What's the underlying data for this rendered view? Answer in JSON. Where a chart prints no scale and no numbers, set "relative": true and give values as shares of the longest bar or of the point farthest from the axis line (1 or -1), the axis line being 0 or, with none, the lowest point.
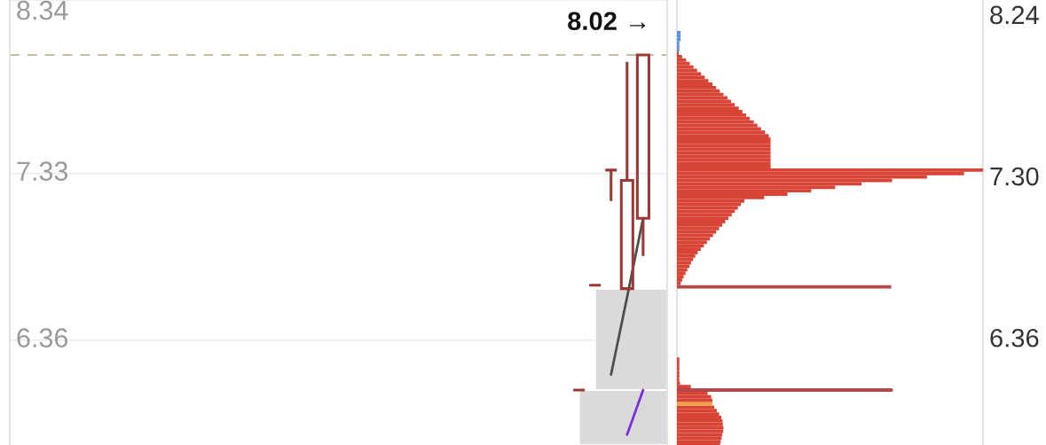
{
  "chart_data": [
    {
      "type": "candlestick",
      "categories": [
        null,
        null,
        null,
        null,
        null,
        null,
        null,
        null,
        null,
        null,
        null,
        null,
        null,
        null,
        null,
        null,
        null,
        null,
        null,
        null,
        null,
        null,
        null,
        null,
        null,
        null,
        null,
        null,
        null,
        null,
        null,
        null,
        null,
        null,
        null,
        null,
        null,
        null,
        null,
        null,
        null
      ],
      "ohlc": [
        null,
        null,
        null,
        null,
        null,
        null,
        null,
        null,
        null,
        null,
        null,
        null,
        null,
        null,
        null,
        null,
        null,
        null,
        null,
        null,
        null,
        null,
        null,
        null,
        null,
        null,
        null,
        null,
        null,
        null,
        null,
        null,
        null,
        null,
        null,
        [
          6.07,
          6.07,
          6.07,
          6.07
        ],
        [
          6.68,
          6.68,
          6.68,
          6.68
        ],
        [
          7.35,
          7.35,
          7.17,
          7.35
        ],
        [
          6.66,
          7.98,
          6.66,
          7.29
        ],
        [
          7.07,
          8.02,
          6.85,
          8.02
        ],
        null
      ],
      "color": "#9b3a35",
      "series": [
        {
          "type": "line",
          "color": "#4d4d4d",
          "values": [
            null,
            null,
            null,
            null,
            null,
            null,
            null,
            null,
            null,
            null,
            null,
            null,
            null,
            null,
            null,
            null,
            null,
            null,
            null,
            null,
            null,
            null,
            null,
            null,
            null,
            null,
            null,
            null,
            null,
            null,
            null,
            null,
            null,
            null,
            null,
            null,
            null,
            6.16,
            6.61,
            7.07,
            null
          ]
        },
        {
          "type": "line",
          "color": "#7b2be0",
          "values": [
            null,
            null,
            null,
            null,
            null,
            null,
            null,
            null,
            null,
            null,
            null,
            null,
            null,
            null,
            null,
            null,
            null,
            null,
            null,
            null,
            null,
            null,
            null,
            null,
            null,
            null,
            null,
            null,
            null,
            null,
            null,
            null,
            null,
            null,
            null,
            null,
            null,
            null,
            5.81,
            6.07,
            null
          ]
        }
      ],
      "ylim": [
        5.75,
        8.34
      ],
      "yticks": [
        8.34,
        7.33,
        6.36
      ],
      "grid": "y",
      "tick_labels": "y",
      "ref_lines": [
        {
          "axis": "y",
          "value": 8.02,
          "color": "#c4bfa3",
          "line_style": "dashed"
        }
      ],
      "bands": [
        {
          "axis": "y",
          "from": 6.07,
          "to": 6.66,
          "color": "#dadada"
        },
        {
          "axis": "y",
          "from": 5.75,
          "to": 6.07,
          "color": "#dadada"
        }
      ],
      "annotations": [
        {
          "text": "8.02 →",
          "y": 8.02
        }
      ]
    },
    {
      "type": "bar",
      "orientation": "horizontal",
      "relative": true,
      "x": [
        5.75,
        5.77,
        5.79,
        5.81,
        5.83,
        5.85,
        5.87,
        5.89,
        5.91,
        5.93,
        5.95,
        5.97,
        5.99,
        6.01,
        6.03,
        6.05,
        6.07,
        6.09,
        6.11,
        6.13,
        6.15,
        6.17,
        6.19,
        6.21,
        6.23,
        6.25,
        6.27,
        6.29,
        6.31,
        6.33,
        6.35,
        6.37,
        6.39,
        6.41,
        6.43,
        6.45,
        6.47,
        6.49,
        6.51,
        6.53,
        6.55,
        6.57,
        6.59,
        6.61,
        6.63,
        6.65,
        6.67,
        6.69,
        6.71,
        6.73,
        6.75,
        6.77,
        6.79,
        6.81,
        6.83,
        6.85,
        6.87,
        6.89,
        6.91,
        6.93,
        6.95,
        6.97,
        6.99,
        7.01,
        7.03,
        7.05,
        7.07,
        7.09,
        7.11,
        7.13,
        7.15,
        7.17,
        7.19,
        7.21,
        7.23,
        7.25,
        7.27,
        7.29,
        7.31,
        7.33,
        7.35,
        7.37,
        7.39,
        7.41,
        7.43,
        7.45,
        7.47,
        7.49,
        7.51,
        7.53,
        7.55,
        7.57,
        7.59,
        7.61,
        7.63,
        7.65,
        7.67,
        7.69,
        7.71,
        7.73,
        7.75,
        7.77,
        7.79,
        7.81,
        7.83,
        7.85,
        7.87,
        7.89,
        7.91,
        7.93,
        7.95,
        7.97,
        7.99,
        8.01,
        8.03,
        8.05,
        8.07,
        8.09,
        8.11,
        8.13,
        8.15
      ],
      "values": [
        0.141,
        0.143,
        0.146,
        0.148,
        0.151,
        0.152,
        0.15,
        0.149,
        0.145,
        0.138,
        0.13,
        0.122,
        0.116,
        0.116,
        0.112,
        0.1,
        0.705,
        0.045,
        0.01,
        0.008,
        0.008,
        0.008,
        0.008,
        0.008,
        0.008,
        0.008,
        null,
        null,
        null,
        null,
        null,
        null,
        null,
        null,
        null,
        null,
        null,
        null,
        null,
        null,
        null,
        null,
        null,
        null,
        null,
        null,
        0.7,
        0.012,
        0.017,
        0.022,
        0.028,
        0.034,
        0.041,
        0.046,
        0.053,
        0.06,
        0.068,
        0.078,
        0.088,
        0.098,
        0.108,
        0.118,
        0.128,
        0.138,
        0.148,
        0.158,
        0.168,
        0.179,
        0.189,
        0.199,
        0.209,
        0.22,
        0.285,
        0.361,
        0.439,
        0.517,
        0.603,
        0.703,
        0.817,
        0.938,
        1,
        0.306,
        0.306,
        0.306,
        0.306,
        0.306,
        0.306,
        0.306,
        0.306,
        0.306,
        0.3,
        0.288,
        0.275,
        0.263,
        0.251,
        0.238,
        0.226,
        0.214,
        0.202,
        0.189,
        0.177,
        0.165,
        0.152,
        0.14,
        0.128,
        0.116,
        0.103,
        0.091,
        0.079,
        0.066,
        0.054,
        0.042,
        0.03,
        0.017,
        0.006,
        0.008,
        0.008,
        0.008,
        0.012,
        0.012,
        0.012
      ],
      "colors": [
        "#d84537",
        "#d84537",
        "#d84537",
        "#d84537",
        "#d84537",
        "#d84537",
        "#d84537",
        "#d84537",
        "#d84537",
        "#d84537",
        "#d84537",
        "#d84537",
        "#f2a23c",
        "#d84537",
        "#d84537",
        "#d84537",
        "#b4484a",
        "#d84537",
        "#d84537",
        "#d84537",
        "#d84537",
        "#d84537",
        "#d84537",
        "#d84537",
        "#d84537",
        "#d84537",
        "#d84537",
        "#d84537",
        "#d84537",
        "#d84537",
        "#d84537",
        "#d84537",
        "#d84537",
        "#d84537",
        "#d84537",
        "#d84537",
        "#d84537",
        "#d84537",
        "#d84537",
        "#d84537",
        "#d84537",
        "#d84537",
        "#d84537",
        "#d84537",
        "#d84537",
        "#d84537",
        "#b4484a",
        "#d84537",
        "#d84537",
        "#d84537",
        "#d84537",
        "#d84537",
        "#d84537",
        "#d84537",
        "#d84537",
        "#d84537",
        "#d84537",
        "#d84537",
        "#d84537",
        "#d84537",
        "#d84537",
        "#d84537",
        "#d84537",
        "#d84537",
        "#d84537",
        "#d84537",
        "#d84537",
        "#d84537",
        "#d84537",
        "#d84537",
        "#d84537",
        "#d84537",
        "#d84537",
        "#d84537",
        "#d84537",
        "#d84537",
        "#d84537",
        "#d84537",
        "#d84537",
        "#d84537",
        "#d84537",
        "#d84537",
        "#d84537",
        "#d84537",
        "#d84537",
        "#d84537",
        "#d84537",
        "#d84537",
        "#d84537",
        "#d84537",
        "#d84537",
        "#d84537",
        "#d84537",
        "#d84537",
        "#d84537",
        "#d84537",
        "#d84537",
        "#d84537",
        "#d84537",
        "#d84537",
        "#d84537",
        "#d84537",
        "#d84537",
        "#d84537",
        "#d84537",
        "#d84537",
        "#d84537",
        "#d84537",
        "#d84537",
        "#d84537",
        "#d84537",
        "#d84537",
        "#d84537",
        "#d84537",
        "#d84537",
        "#5b8fd8",
        "#5b8fd8",
        "#5b8fd8",
        "#5b8fd8",
        "#5b8fd8",
        "#5b8fd8"
      ],
      "ylim": [
        5.75,
        8.34
      ],
      "yticks": [
        8.24,
        {
          "value": 7.3,
          "label": "7.30"
        },
        6.36
      ],
      "tick_labels": "y"
    }
  ]
}
